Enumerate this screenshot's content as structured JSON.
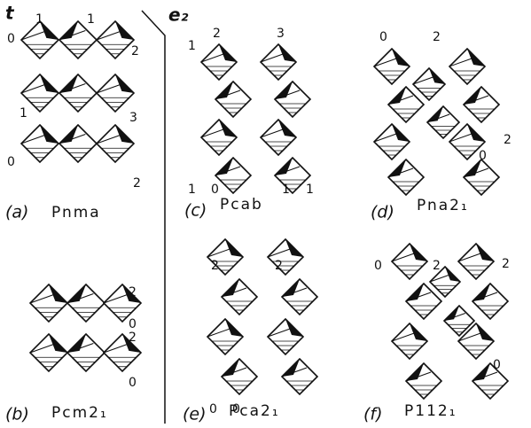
{
  "header": {
    "left": "t",
    "right": "e₂"
  },
  "panels": [
    {
      "label": "(a)",
      "name": "Pnma",
      "marks": [
        "0",
        "1",
        "1",
        "2",
        "1",
        "3",
        "0",
        "2"
      ]
    },
    {
      "label": "(b)",
      "name": "Pcm2₁",
      "marks": [
        "2",
        "0",
        "2",
        "0"
      ]
    },
    {
      "label": "(c)",
      "name": "Pcab",
      "marks": [
        "1",
        "2",
        "3",
        "1",
        "0",
        "1",
        "1"
      ]
    },
    {
      "label": "(d)",
      "name": "Pna2₁",
      "marks": [
        "0",
        "2",
        "2",
        "0"
      ]
    },
    {
      "label": "(e)",
      "name": "Pca2₁",
      "marks": [
        "2",
        "2",
        "0",
        "0"
      ]
    },
    {
      "label": "(f)",
      "name": "P112₁",
      "marks": [
        "0",
        "2",
        "2",
        "0"
      ]
    }
  ]
}
